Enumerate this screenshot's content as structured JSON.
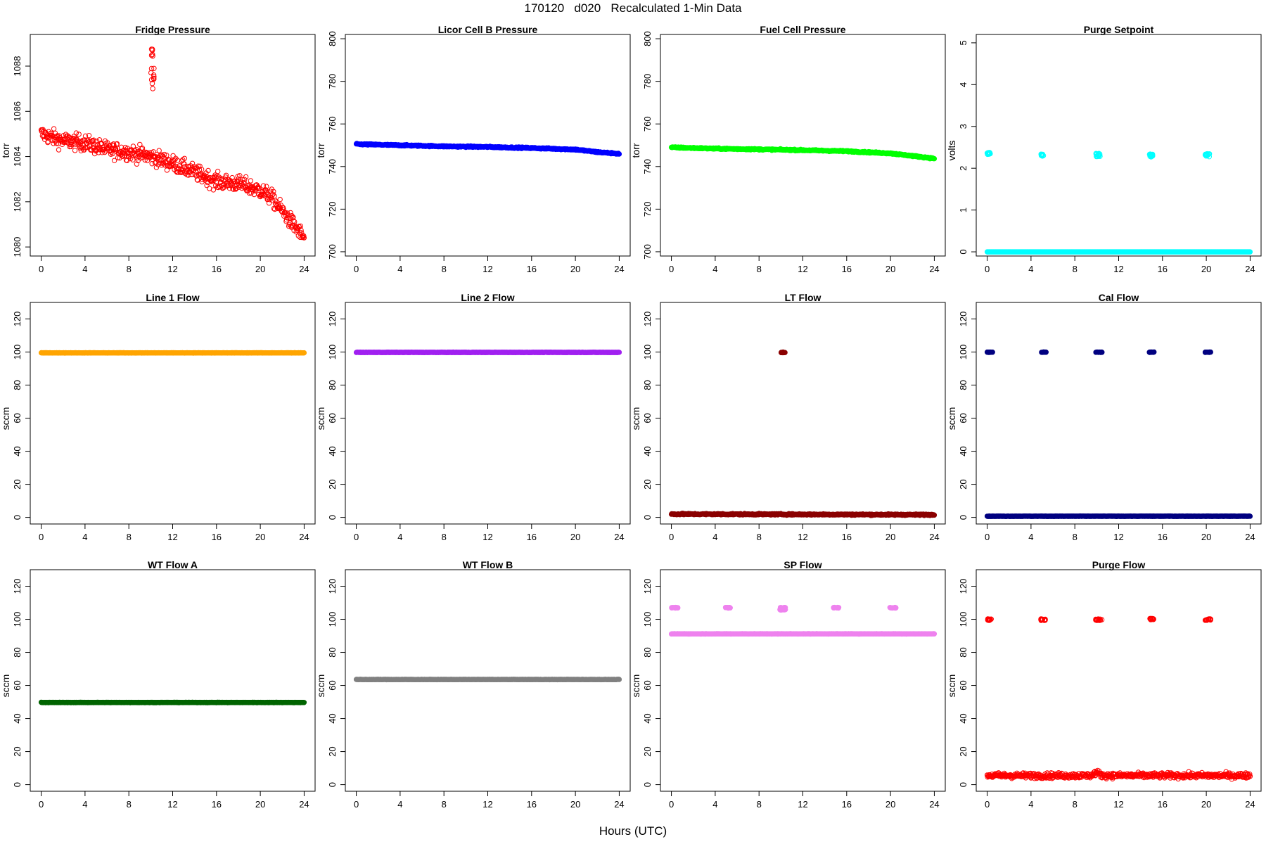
{
  "page": {
    "title": "170120   d020   Recalculated 1-Min Data",
    "x_caption": "Hours (UTC)"
  },
  "chart_data": [
    {
      "id": "fridge",
      "type": "scatter",
      "title": "Fridge Pressure",
      "ylabel": "torr",
      "ylim": [
        1079.6,
        1089.4
      ],
      "yticks": [
        1080,
        1082,
        1084,
        1086,
        1088
      ],
      "color": "#ff0000",
      "marker": "open",
      "trend": [
        [
          0,
          1085.0
        ],
        [
          2,
          1084.7
        ],
        [
          4,
          1084.6
        ],
        [
          6,
          1084.3
        ],
        [
          8,
          1084.2
        ],
        [
          10,
          1084.0
        ],
        [
          12,
          1083.7
        ],
        [
          14,
          1083.3
        ],
        [
          16,
          1082.9
        ],
        [
          18,
          1082.8
        ],
        [
          20,
          1082.5
        ],
        [
          21,
          1082.2
        ],
        [
          22,
          1081.6
        ],
        [
          23,
          1081.0
        ],
        [
          24,
          1080.4
        ]
      ],
      "noise": 0.35,
      "spikes": [
        {
          "x": [
            10.0,
            10.3
          ],
          "y": [
            1087.0,
            1088.8
          ]
        }
      ]
    },
    {
      "id": "licor",
      "type": "scatter",
      "title": "Licor Cell B Pressure",
      "ylabel": "torr",
      "ylim": [
        698,
        802
      ],
      "yticks": [
        700,
        720,
        740,
        760,
        780,
        800
      ],
      "color": "#0000ff",
      "marker": "filled",
      "trend": [
        [
          0,
          750.5
        ],
        [
          4,
          750
        ],
        [
          8,
          749.5
        ],
        [
          12,
          749.2
        ],
        [
          16,
          748.7
        ],
        [
          20,
          748
        ],
        [
          22,
          746.8
        ],
        [
          24,
          746
        ]
      ],
      "noise": 0.3,
      "spikes": []
    },
    {
      "id": "fuelcell",
      "type": "scatter",
      "title": "Fuel Cell Pressure",
      "ylabel": "torr",
      "ylim": [
        698,
        802
      ],
      "yticks": [
        700,
        720,
        740,
        760,
        780,
        800
      ],
      "color": "#00ff00",
      "marker": "filled",
      "trend": [
        [
          0,
          749
        ],
        [
          4,
          748.4
        ],
        [
          8,
          748.1
        ],
        [
          12,
          747.7
        ],
        [
          16,
          747.2
        ],
        [
          20,
          746.2
        ],
        [
          22,
          745
        ],
        [
          24,
          743.8
        ]
      ],
      "noise": 0.3,
      "spikes": []
    },
    {
      "id": "purge_sp",
      "type": "scatter",
      "title": "Purge Setpoint",
      "ylabel": "volts",
      "ylim": [
        -0.1,
        5.2
      ],
      "yticks": [
        0,
        1,
        2,
        3,
        4,
        5
      ],
      "color": "#00ffff",
      "marker": "open",
      "trend": [
        [
          0,
          0
        ],
        [
          24,
          0
        ]
      ],
      "noise": 0,
      "spikes": [
        {
          "x": [
            0.0,
            0.3
          ],
          "y": [
            2.32,
            2.38
          ]
        },
        {
          "x": [
            4.9,
            5.2
          ],
          "y": [
            2.27,
            2.34
          ]
        },
        {
          "x": [
            9.9,
            10.3
          ],
          "y": [
            2.27,
            2.37
          ]
        },
        {
          "x": [
            14.8,
            15.1
          ],
          "y": [
            2.27,
            2.34
          ]
        },
        {
          "x": [
            19.9,
            20.3
          ],
          "y": [
            2.27,
            2.37
          ]
        }
      ]
    },
    {
      "id": "line1",
      "type": "scatter",
      "title": "Line 1 Flow",
      "ylabel": "sccm",
      "ylim": [
        -4,
        130
      ],
      "yticks": [
        0,
        20,
        40,
        60,
        80,
        100,
        120
      ],
      "color": "#ffa500",
      "marker": "filled",
      "trend": [
        [
          0,
          99.5
        ],
        [
          24,
          99.5
        ]
      ],
      "noise": 0.1,
      "spikes": []
    },
    {
      "id": "line2",
      "type": "scatter",
      "title": "Line 2 Flow",
      "ylabel": "sccm",
      "ylim": [
        -4,
        130
      ],
      "yticks": [
        0,
        20,
        40,
        60,
        80,
        100,
        120
      ],
      "color": "#a020f0",
      "marker": "filled",
      "trend": [
        [
          0,
          99.8
        ],
        [
          24,
          99.8
        ]
      ],
      "noise": 0.1,
      "spikes": []
    },
    {
      "id": "lt",
      "type": "scatter",
      "title": "LT Flow",
      "ylabel": "sccm",
      "ylim": [
        -4,
        130
      ],
      "yticks": [
        0,
        20,
        40,
        60,
        80,
        100,
        120
      ],
      "color": "#8b0000",
      "marker": "filled",
      "trend": [
        [
          0,
          2.0
        ],
        [
          24,
          1.6
        ]
      ],
      "noise": 0.4,
      "spikes": [
        {
          "x": [
            10.0,
            10.4
          ],
          "y": [
            99.6,
            100.0
          ]
        }
      ]
    },
    {
      "id": "cal",
      "type": "scatter",
      "title": "Cal Flow",
      "ylabel": "sccm",
      "ylim": [
        -4,
        130
      ],
      "yticks": [
        0,
        20,
        40,
        60,
        80,
        100,
        120
      ],
      "color": "#000080",
      "marker": "filled",
      "trend": [
        [
          0,
          0.7
        ],
        [
          24,
          0.7
        ]
      ],
      "noise": 0.1,
      "spikes": [
        {
          "x": [
            0.0,
            0.5
          ],
          "y": [
            99.8,
            100.0
          ]
        },
        {
          "x": [
            4.9,
            5.4
          ],
          "y": [
            99.8,
            100.0
          ]
        },
        {
          "x": [
            9.9,
            10.5
          ],
          "y": [
            99.8,
            100.0
          ]
        },
        {
          "x": [
            14.8,
            15.3
          ],
          "y": [
            99.8,
            100.0
          ]
        },
        {
          "x": [
            19.9,
            20.5
          ],
          "y": [
            99.8,
            100.0
          ]
        }
      ]
    },
    {
      "id": "wta",
      "type": "scatter",
      "title": "WT Flow A",
      "ylabel": "sccm",
      "ylim": [
        -4,
        130
      ],
      "yticks": [
        0,
        20,
        40,
        60,
        80,
        100,
        120
      ],
      "color": "#006400",
      "marker": "filled",
      "trend": [
        [
          0,
          49.7
        ],
        [
          24,
          49.7
        ]
      ],
      "noise": 0.1,
      "spikes": []
    },
    {
      "id": "wtb",
      "type": "scatter",
      "title": "WT Flow B",
      "ylabel": "sccm",
      "ylim": [
        -4,
        130
      ],
      "yticks": [
        0,
        20,
        40,
        60,
        80,
        100,
        120
      ],
      "color": "#808080",
      "marker": "filled",
      "trend": [
        [
          0,
          63.6
        ],
        [
          24,
          63.6
        ]
      ],
      "noise": 0.1,
      "spikes": []
    },
    {
      "id": "sp",
      "type": "scatter",
      "title": "SP Flow",
      "ylabel": "sccm",
      "ylim": [
        -4,
        130
      ],
      "yticks": [
        0,
        20,
        40,
        60,
        80,
        100,
        120
      ],
      "color": "#ee82ee",
      "marker": "filled",
      "trend": [
        [
          0,
          91.2
        ],
        [
          24,
          91.2
        ]
      ],
      "noise": 0.1,
      "spikes": [
        {
          "x": [
            0.0,
            0.6
          ],
          "y": [
            106.8,
            107.2
          ]
        },
        {
          "x": [
            4.9,
            5.4
          ],
          "y": [
            106.8,
            107.2
          ]
        },
        {
          "x": [
            9.9,
            10.5
          ],
          "y": [
            105.5,
            107.2
          ]
        },
        {
          "x": [
            14.8,
            15.3
          ],
          "y": [
            106.8,
            107.2
          ]
        },
        {
          "x": [
            19.9,
            20.5
          ],
          "y": [
            106.8,
            107.2
          ]
        }
      ]
    },
    {
      "id": "purgeflow",
      "type": "scatter",
      "title": "Purge Flow",
      "ylabel": "sccm",
      "ylim": [
        -4,
        130
      ],
      "yticks": [
        0,
        20,
        40,
        60,
        80,
        100,
        120
      ],
      "color": "#ff0000",
      "marker": "open",
      "trend": [
        [
          0,
          5.5
        ],
        [
          9.5,
          5.5
        ],
        [
          10,
          7.5
        ],
        [
          10.5,
          5.5
        ],
        [
          24,
          5.5
        ]
      ],
      "noise": 1.6,
      "spikes": [
        {
          "x": [
            0.0,
            0.4
          ],
          "y": [
            99.3,
            100.3
          ]
        },
        {
          "x": [
            4.9,
            5.3
          ],
          "y": [
            99.3,
            100.3
          ]
        },
        {
          "x": [
            9.9,
            10.5
          ],
          "y": [
            99.3,
            100.3
          ]
        },
        {
          "x": [
            14.8,
            15.2
          ],
          "y": [
            99.8,
            100.5
          ]
        },
        {
          "x": [
            19.9,
            20.4
          ],
          "y": [
            99.3,
            100.3
          ]
        }
      ]
    }
  ],
  "x_axis": {
    "xlim": [
      -1,
      25
    ],
    "ticks": [
      0,
      4,
      8,
      12,
      16,
      20,
      24
    ]
  }
}
